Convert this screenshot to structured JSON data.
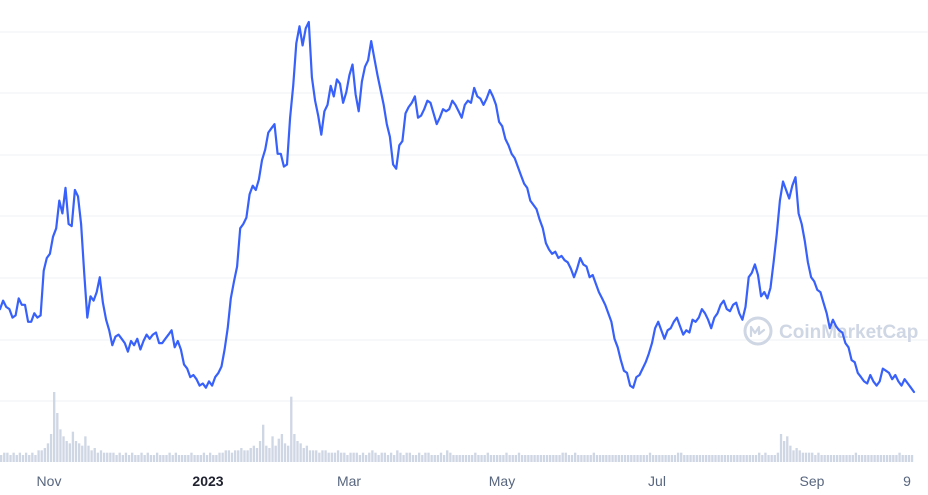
{
  "chart_data": {
    "type": "line",
    "title": "",
    "xlabel": "",
    "ylabel": "",
    "grid": true,
    "line_color": "#3861fb",
    "volume_color": "#cfd6e4",
    "x_tick_labels": [
      {
        "label": "Nov",
        "x": "Nov",
        "bold": false
      },
      {
        "label": "2023",
        "x": "2023",
        "bold": true
      },
      {
        "label": "Mar",
        "x": "Mar",
        "bold": false
      },
      {
        "label": "May",
        "x": "May",
        "bold": false
      },
      {
        "label": "Jul",
        "x": "Jul",
        "bold": false
      },
      {
        "label": "Sep",
        "x": "Sep",
        "bold": false
      },
      {
        "label": "9",
        "x": "9",
        "bold": false
      }
    ],
    "price_series": [
      40,
      44,
      41,
      40,
      36,
      37,
      45,
      42,
      42,
      34,
      34,
      38,
      36,
      37,
      58,
      64,
      66,
      74,
      78,
      91,
      85,
      97,
      80,
      79,
      96,
      93,
      80,
      57,
      36,
      46,
      44,
      48,
      55,
      43,
      35,
      30,
      23,
      27,
      28,
      26,
      24,
      20,
      25,
      23,
      26,
      21,
      25,
      28,
      26,
      28,
      29,
      24,
      24,
      26,
      28,
      30,
      22,
      25,
      21,
      14,
      12,
      8,
      9,
      7,
      4,
      5,
      3,
      6,
      4,
      8,
      10,
      13,
      21,
      31,
      45,
      53,
      60,
      78,
      80,
      83,
      94,
      98,
      96,
      101,
      110,
      115,
      123,
      125,
      127,
      113,
      113,
      107,
      108,
      130,
      145,
      165,
      173,
      164,
      172,
      175,
      149,
      138,
      131,
      122,
      133,
      136,
      145,
      140,
      148,
      146,
      137,
      142,
      150,
      155,
      141,
      133,
      147,
      154,
      157,
      166,
      158,
      150,
      143,
      136,
      127,
      121,
      108,
      106,
      117,
      119,
      132,
      135,
      137,
      140,
      130,
      131,
      134,
      138,
      137,
      132,
      127,
      130,
      134,
      133,
      134,
      138,
      136,
      133,
      130,
      136,
      138,
      137,
      144,
      140,
      139,
      136,
      139,
      143,
      140,
      136,
      128,
      126,
      120,
      117,
      113,
      111,
      107,
      103,
      99,
      97,
      91,
      89,
      87,
      82,
      78,
      71,
      68,
      66,
      67,
      64,
      65,
      63,
      62,
      59,
      55,
      59,
      64,
      61,
      60,
      55,
      56,
      52,
      48,
      45,
      42,
      38,
      34,
      26,
      22,
      16,
      11,
      10,
      4,
      3,
      8,
      9,
      12,
      15,
      19,
      24,
      31,
      34,
      30,
      26,
      30,
      31,
      34,
      36,
      32,
      28,
      30,
      29,
      35,
      34,
      36,
      40,
      38,
      35,
      31,
      36,
      38,
      42,
      44,
      40,
      39,
      42,
      43,
      38,
      35,
      41,
      55,
      57,
      61,
      56,
      46,
      48,
      45,
      50,
      62,
      75,
      91,
      100,
      96,
      92,
      98,
      102,
      85,
      80,
      72,
      62,
      55,
      53,
      49,
      48,
      43,
      38,
      31,
      35,
      32,
      30,
      29,
      24,
      22,
      16,
      15,
      10,
      8,
      6,
      5,
      9,
      6,
      4,
      6,
      12,
      11,
      10,
      7,
      9,
      6,
      4,
      7,
      5,
      3,
      1
    ],
    "volume_series": [
      3,
      4,
      4,
      3,
      4,
      3,
      4,
      3,
      4,
      3,
      4,
      3,
      5,
      5,
      6,
      8,
      12,
      30,
      21,
      14,
      11,
      9,
      8,
      13,
      9,
      8,
      7,
      11,
      7,
      5,
      6,
      4,
      5,
      4,
      4,
      4,
      4,
      3,
      4,
      3,
      4,
      3,
      4,
      3,
      3,
      4,
      3,
      4,
      3,
      3,
      4,
      3,
      3,
      3,
      4,
      3,
      4,
      3,
      3,
      3,
      3,
      4,
      3,
      3,
      3,
      4,
      3,
      4,
      3,
      3,
      4,
      4,
      5,
      5,
      4,
      5,
      5,
      6,
      5,
      5,
      6,
      7,
      6,
      9,
      16,
      7,
      6,
      11,
      7,
      10,
      12,
      8,
      7,
      28,
      12,
      9,
      8,
      6,
      7,
      5,
      5,
      5,
      4,
      5,
      5,
      4,
      4,
      4,
      5,
      4,
      4,
      3,
      4,
      4,
      4,
      3,
      4,
      3,
      4,
      5,
      4,
      3,
      4,
      4,
      3,
      4,
      3,
      5,
      4,
      3,
      4,
      4,
      3,
      3,
      4,
      3,
      4,
      4,
      3,
      3,
      3,
      4,
      3,
      5,
      4,
      3,
      3,
      3,
      3,
      3,
      3,
      3,
      4,
      3,
      3,
      3,
      4,
      3,
      3,
      3,
      3,
      3,
      4,
      3,
      3,
      3,
      4,
      3,
      3,
      3,
      3,
      3,
      3,
      3,
      3,
      3,
      3,
      3,
      3,
      3,
      4,
      4,
      3,
      3,
      4,
      3,
      3,
      3,
      3,
      3,
      4,
      3,
      3,
      3,
      3,
      3,
      3,
      3,
      3,
      3,
      3,
      3,
      3,
      3,
      3,
      3,
      3,
      3,
      4,
      3,
      3,
      3,
      3,
      3,
      3,
      3,
      3,
      4,
      4,
      3,
      3,
      3,
      3,
      3,
      3,
      3,
      3,
      3,
      3,
      3,
      3,
      3,
      3,
      3,
      3,
      3,
      3,
      3,
      3,
      3,
      3,
      3,
      3,
      4,
      3,
      4,
      3,
      3,
      3,
      4,
      12,
      9,
      11,
      7,
      5,
      6,
      5,
      4,
      4,
      4,
      4,
      3,
      4,
      3,
      3,
      3,
      3,
      3,
      3,
      3,
      3,
      3,
      3,
      3,
      4,
      3,
      3,
      3,
      3,
      3,
      3,
      3,
      3,
      3,
      3,
      3,
      3,
      3,
      4,
      3,
      3,
      3,
      3
    ],
    "watermark": {
      "text": "CoinMarketCap"
    }
  }
}
